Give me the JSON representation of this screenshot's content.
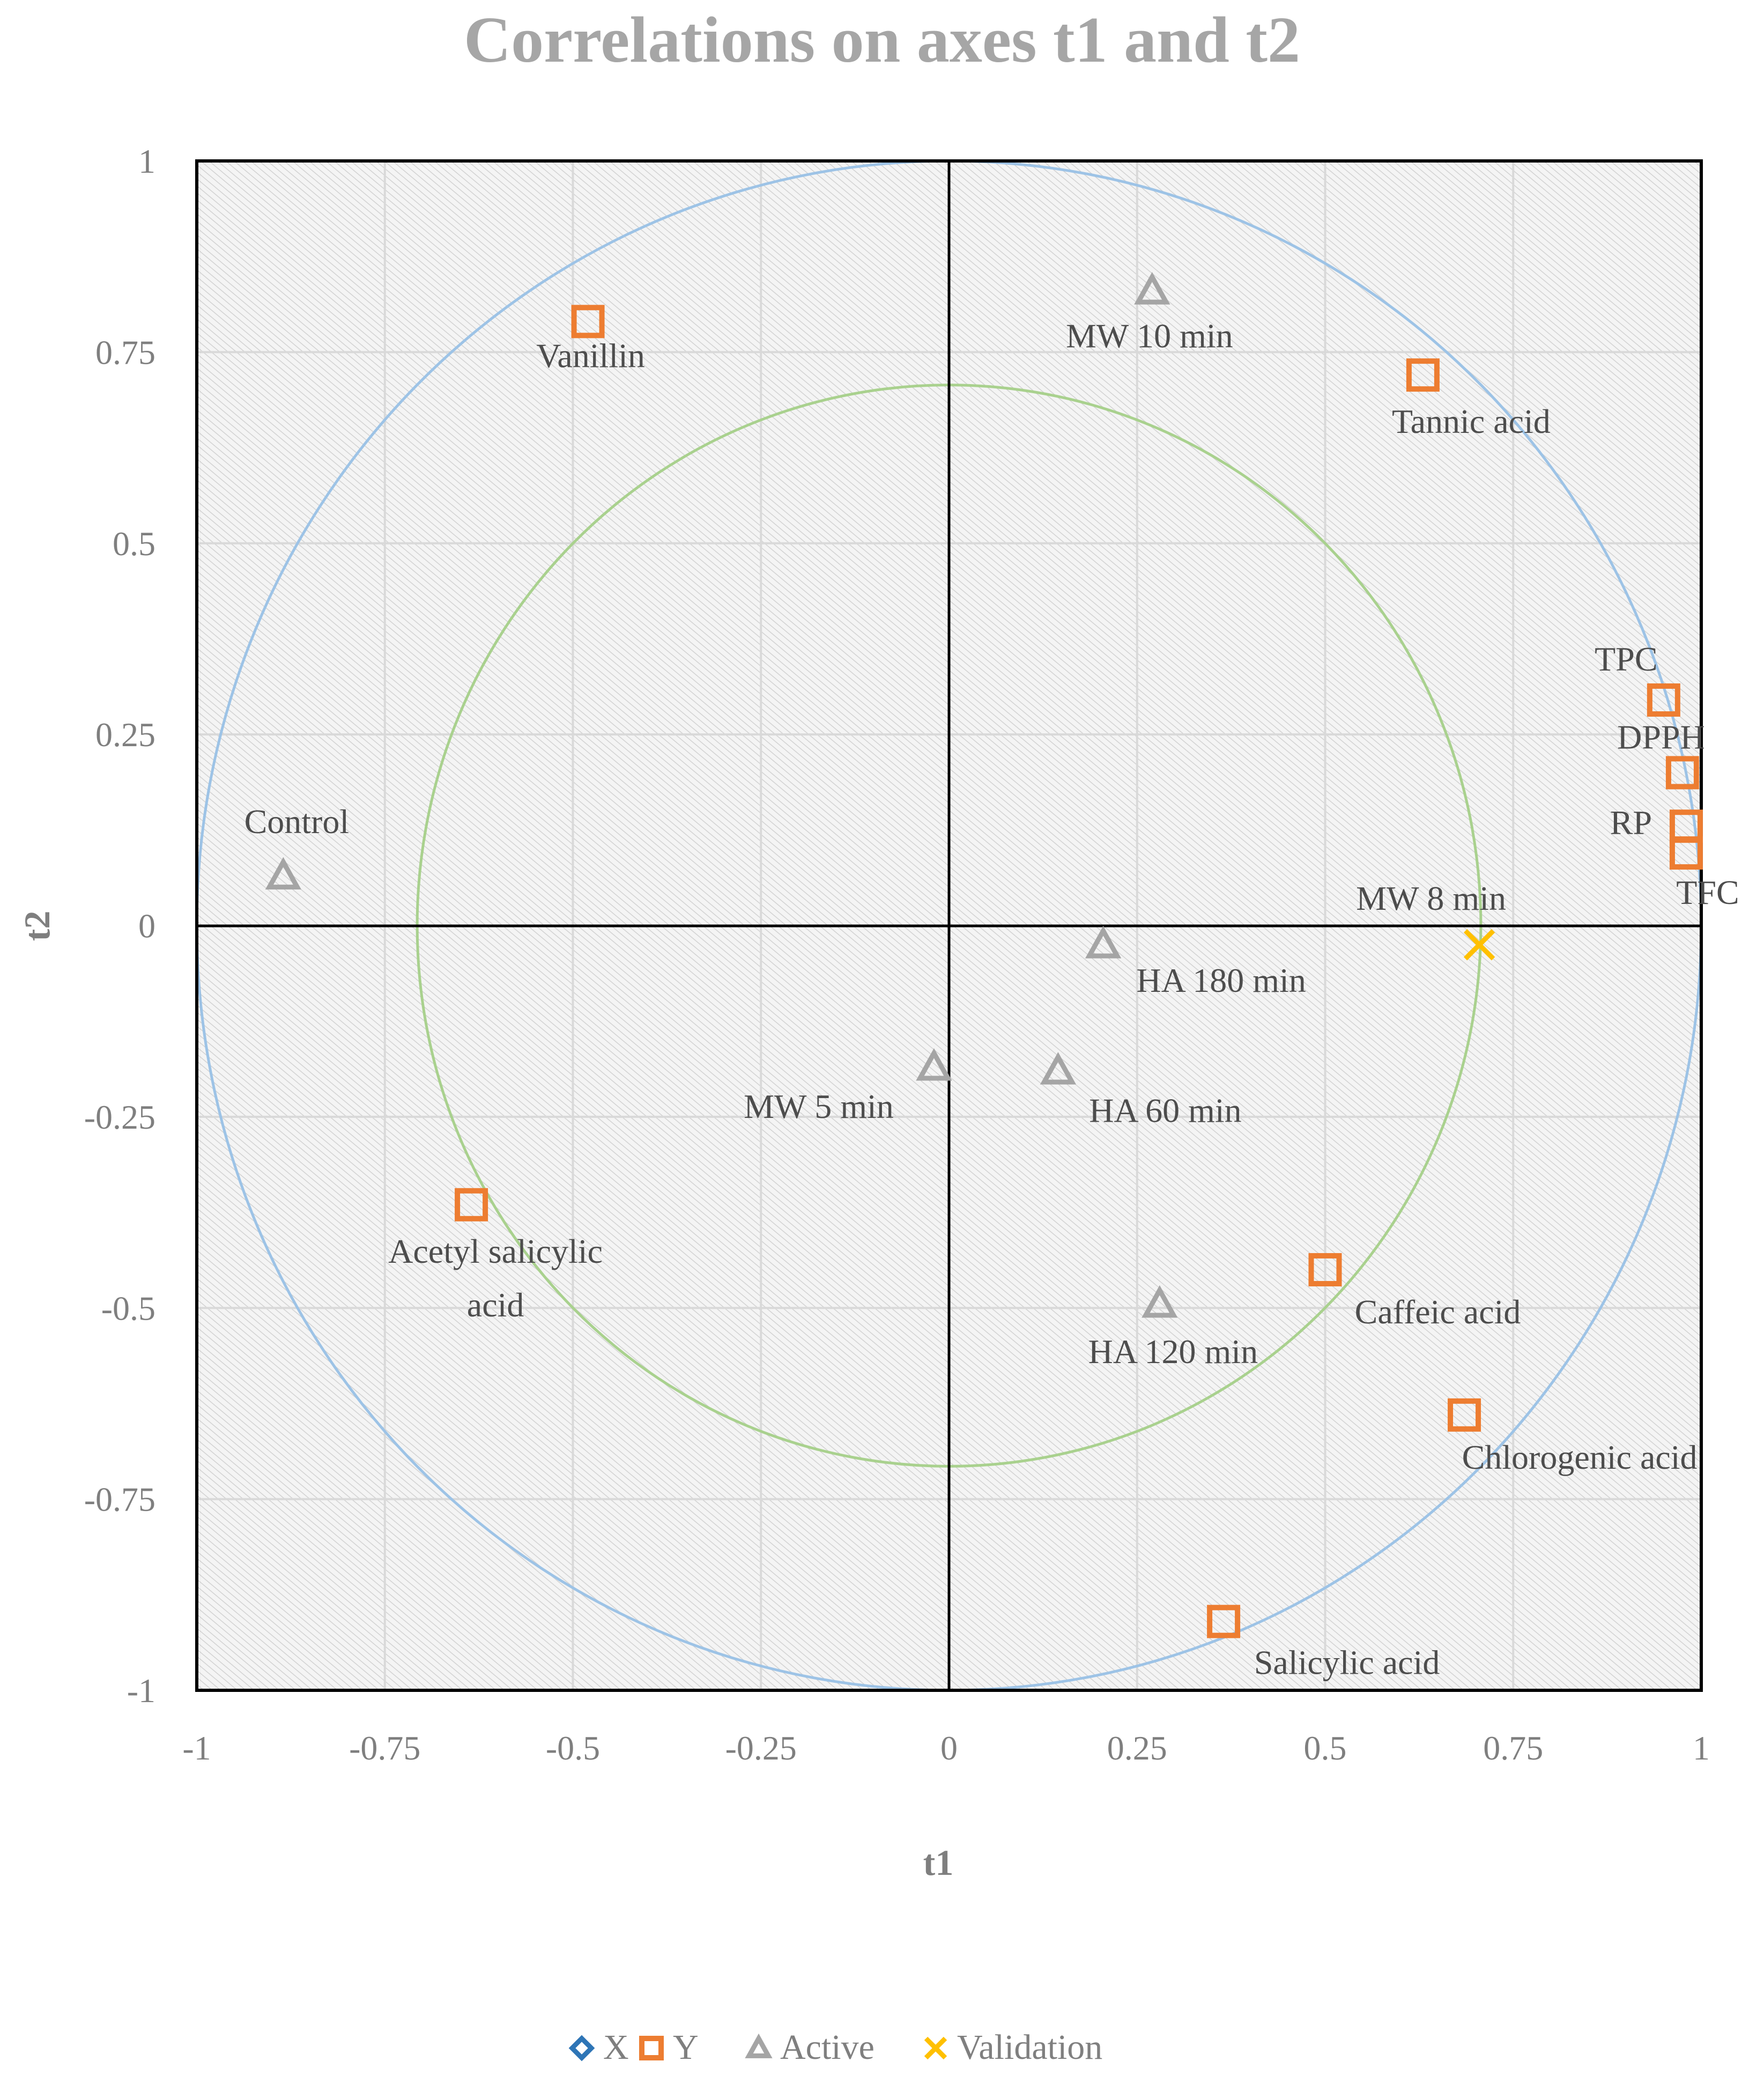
{
  "chart_data": {
    "type": "scatter",
    "title": "Correlations on axes t1 and t2",
    "xlabel": "t1",
    "ylabel": "t2",
    "xlim": [
      -1,
      1
    ],
    "ylim": [
      -1,
      1
    ],
    "xticks": [
      "-1",
      "-0.75",
      "-0.5",
      "-0.25",
      "0",
      "0.25",
      "0.5",
      "0.75",
      "1"
    ],
    "yticks": [
      "1",
      "0.75",
      "0.5",
      "0.25",
      "0",
      "-0.25",
      "-0.5",
      "-0.75",
      "-1"
    ],
    "grid": true,
    "circles": [
      {
        "radius": 1.0,
        "color": "#9dc3e6"
      },
      {
        "radius": 0.707,
        "color": "#a9d18e"
      }
    ],
    "legend_position": "bottom",
    "series": [
      {
        "name": "X",
        "marker": "diamond",
        "color": "#2e75b6",
        "points": []
      },
      {
        "name": "Y",
        "marker": "square",
        "color": "#ed7d31",
        "points": [
          {
            "label": "Vanillin",
            "x": -0.48,
            "y": 0.79
          },
          {
            "label": "Tannic acid",
            "x": 0.63,
            "y": 0.72
          },
          {
            "label": "TPC",
            "x": 0.95,
            "y": 0.295
          },
          {
            "label": "DPPH",
            "x": 0.975,
            "y": 0.2
          },
          {
            "label": "RP",
            "x": 0.98,
            "y": 0.13
          },
          {
            "label": "TFC",
            "x": 0.98,
            "y": 0.095
          },
          {
            "label": "Acetyl salicylic acid",
            "x": -0.635,
            "y": -0.365
          },
          {
            "label": "Caffeic acid",
            "x": 0.5,
            "y": -0.45
          },
          {
            "label": "Chlorogenic acid",
            "x": 0.685,
            "y": -0.64
          },
          {
            "label": "Salicylic acid",
            "x": 0.365,
            "y": -0.91
          }
        ]
      },
      {
        "name": "Active",
        "marker": "triangle",
        "color": "#a5a5a5",
        "points": [
          {
            "label": "MW 10 min",
            "x": 0.27,
            "y": 0.83
          },
          {
            "label": "Control",
            "x": -0.885,
            "y": 0.065
          },
          {
            "label": "HA 180 min",
            "x": 0.205,
            "y": -0.025
          },
          {
            "label": "MW 5 min",
            "x": -0.02,
            "y": -0.185
          },
          {
            "label": "HA 60 min",
            "x": 0.145,
            "y": -0.19
          },
          {
            "label": "HA 120 min",
            "x": 0.28,
            "y": -0.495
          }
        ]
      },
      {
        "name": "Validation",
        "marker": "x",
        "color": "#ffc000",
        "points": [
          {
            "label": "MW 8 min",
            "x": 0.705,
            "y": -0.025
          }
        ]
      }
    ]
  }
}
